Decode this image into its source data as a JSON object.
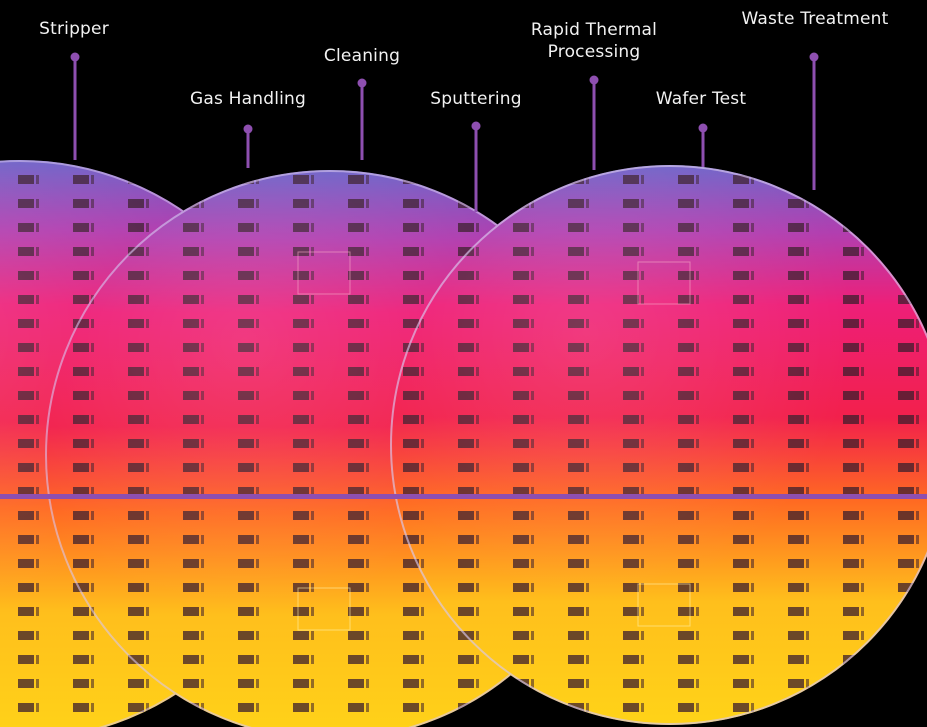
{
  "colors": {
    "background": "#000000",
    "accent": "#8e4fb0",
    "label_text": "#f2f2f2",
    "wafer_top": "#7b62c9",
    "wafer_mid": "#f0205a",
    "wafer_low": "#ff6a1e",
    "wafer_bottom": "#ffd21a",
    "die": "#3a1d2c"
  },
  "labels": [
    {
      "id": "stripper",
      "text": "Stripper"
    },
    {
      "id": "cleaning",
      "text": "Cleaning"
    },
    {
      "id": "gas-handling",
      "text": "Gas Handling"
    },
    {
      "id": "sputtering",
      "text": "Sputtering"
    },
    {
      "id": "rapid-thermal",
      "text": "Rapid Thermal",
      "text2": "Processing"
    },
    {
      "id": "wafer-test",
      "text": "Wafer Test"
    },
    {
      "id": "waste-treatment",
      "text": "Waste Treatment"
    }
  ]
}
